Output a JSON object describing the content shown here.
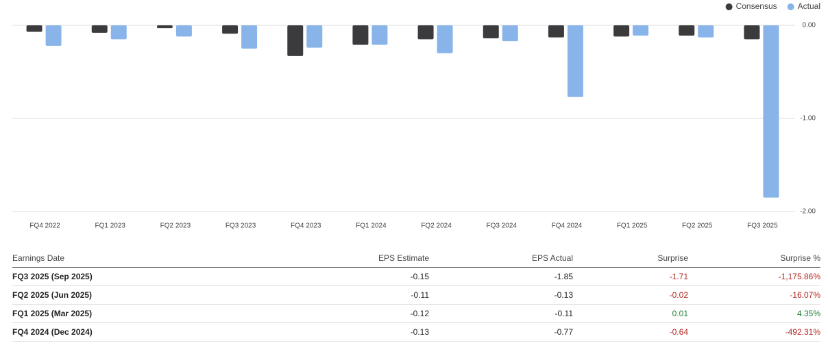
{
  "chart_data": {
    "type": "bar",
    "categories": [
      "FQ4 2022",
      "FQ1 2023",
      "FQ2 2023",
      "FQ3 2023",
      "FQ4 2023",
      "FQ1 2024",
      "FQ2 2024",
      "FQ3 2024",
      "FQ4 2024",
      "FQ1 2025",
      "FQ2 2025",
      "FQ3 2025"
    ],
    "series": [
      {
        "name": "Consensus",
        "color": "#3b3b3e",
        "values": [
          -0.07,
          -0.08,
          -0.03,
          -0.09,
          -0.33,
          -0.21,
          -0.15,
          -0.14,
          -0.13,
          -0.12,
          -0.11,
          -0.15
        ]
      },
      {
        "name": "Actual",
        "color": "#88b4ea",
        "values": [
          -0.22,
          -0.15,
          -0.12,
          -0.25,
          -0.24,
          -0.21,
          -0.3,
          -0.17,
          -0.77,
          -0.11,
          -0.13,
          -1.85
        ]
      }
    ],
    "ylim": [
      -2,
      0
    ],
    "yticks": [
      {
        "value": 0,
        "label": "0.00"
      },
      {
        "value": -1,
        "label": "-1.00"
      },
      {
        "value": -2,
        "label": "-2.00"
      }
    ],
    "grid": true,
    "legend": "top-right"
  },
  "table": {
    "header": [
      "Earnings Date",
      "EPS Estimate",
      "EPS Actual",
      "Surprise",
      "Surprise %"
    ],
    "rows": [
      [
        "FQ3 2025 (Sep 2025)",
        "-0.15",
        "-1.85",
        "-1.71",
        "-1,175.86%"
      ],
      [
        "FQ2 2025 (Jun 2025)",
        "-0.11",
        "-0.13",
        "-0.02",
        "-16.07%"
      ],
      [
        "FQ1 2025 (Mar 2025)",
        "-0.12",
        "-0.11",
        "0.01",
        "4.35%"
      ],
      [
        "FQ4 2024 (Dec 2024)",
        "-0.13",
        "-0.77",
        "-0.64",
        "-492.31%"
      ]
    ]
  }
}
